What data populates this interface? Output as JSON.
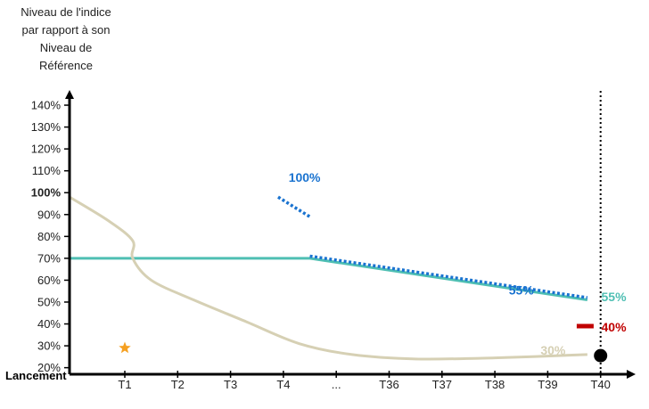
{
  "chart_data": {
    "type": "line",
    "ylabel_lines": [
      "Niveau de l'indice",
      "par rapport à son",
      "Niveau de",
      "Référence"
    ],
    "x_origin_label": "Lancement",
    "x_ticks": [
      "T1",
      "T2",
      "T3",
      "T4",
      "...",
      "T36",
      "T37",
      "T38",
      "T39",
      "T40"
    ],
    "y_ticks": [
      {
        "value": 140,
        "label": "140%"
      },
      {
        "value": 130,
        "label": "130%"
      },
      {
        "value": 120,
        "label": "120%"
      },
      {
        "value": 110,
        "label": "110%"
      },
      {
        "value": 100,
        "label": "100%",
        "bold": true
      },
      {
        "value": 90,
        "label": "90%"
      },
      {
        "value": 80,
        "label": "80%"
      },
      {
        "value": 70,
        "label": "70%"
      },
      {
        "value": 60,
        "label": "60%"
      },
      {
        "value": 50,
        "label": "50%"
      },
      {
        "value": 40,
        "label": "40%"
      },
      {
        "value": 30,
        "label": "30%"
      },
      {
        "value": 20,
        "label": "20%"
      }
    ],
    "ylim": [
      17,
      150
    ],
    "colors": {
      "teal": "#4fbfb3",
      "blue": "#1a73d0",
      "beige": "#d6d0b4",
      "red": "#c00000",
      "star": "#f5a021",
      "axis": "#000000"
    },
    "series": [
      {
        "style": "solid",
        "color": "#4fbfb3",
        "points": [
          [
            0,
            70
          ],
          [
            4.5,
            70
          ],
          [
            9.75,
            51
          ]
        ]
      },
      {
        "style": "dotted",
        "color": "#1a73d0",
        "points": [
          [
            4.5,
            71
          ],
          [
            9.75,
            52
          ]
        ]
      },
      {
        "style": "dotted",
        "color": "#1a73d0",
        "points": [
          [
            3.9,
            98
          ],
          [
            4.5,
            89
          ]
        ]
      },
      {
        "style": "solid",
        "color": "#d6d0b4",
        "points": [
          [
            0,
            98
          ],
          [
            0.7,
            87
          ],
          [
            1.15,
            78
          ],
          [
            1.15,
            70
          ],
          [
            1.5,
            60
          ],
          [
            2.3,
            51
          ],
          [
            3.3,
            41
          ],
          [
            4.3,
            31
          ],
          [
            5.3,
            26
          ],
          [
            6.5,
            24
          ],
          [
            8,
            24.5
          ],
          [
            9.75,
            26
          ]
        ]
      }
    ],
    "annotations": [
      {
        "text": "100%",
        "x": 4.4,
        "y": 107,
        "color": "#1a73d0"
      },
      {
        "text": "55%",
        "x": 8.5,
        "y": 55.5,
        "color": "#1a73d0"
      },
      {
        "text": "55%",
        "x": 10.25,
        "y": 52.5,
        "color": "#4fbfb3"
      },
      {
        "text": "40%",
        "x": 10.25,
        "y": 38.5,
        "color": "#c00000"
      },
      {
        "text": "30%",
        "x": 9.1,
        "y": 28,
        "color": "#d6d0b4"
      }
    ],
    "red_marker": {
      "x": 9.7,
      "y": 39
    },
    "final_point": {
      "x": 10,
      "y": 25.5
    },
    "star": {
      "x": 1,
      "y": 29
    },
    "vline_x": 10,
    "legend": "none",
    "grid": false
  }
}
